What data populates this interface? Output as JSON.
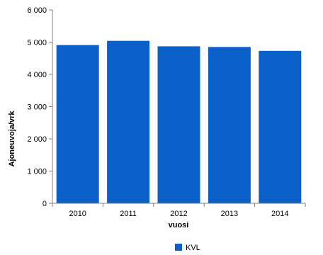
{
  "chart_data": {
    "type": "bar",
    "categories": [
      "2010",
      "2011",
      "2012",
      "2013",
      "2014"
    ],
    "series": [
      {
        "name": "KVL",
        "values": [
          4910,
          5040,
          4870,
          4850,
          4730
        ]
      }
    ],
    "xlabel": "vuosi",
    "ylabel": "Ajoneuvoja/vrk",
    "ylim": [
      0,
      6000
    ],
    "yticks": [
      0,
      1000,
      2000,
      3000,
      4000,
      5000,
      6000
    ],
    "ytick_labels": [
      "0",
      "1 000",
      "2 000",
      "3 000",
      "4 000",
      "5 000",
      "6 000"
    ],
    "grid": false,
    "legend_position": "bottom-center",
    "colors": {
      "bar": "#0a5fc8",
      "axis": "#808080"
    }
  }
}
